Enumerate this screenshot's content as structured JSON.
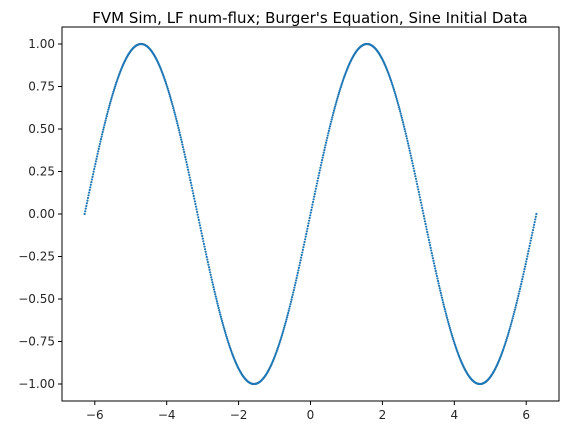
{
  "chart_data": {
    "type": "scatter",
    "title": "FVM Sim, LF num-flux; Burger's Equation, Sine Initial Data",
    "xlabel": "",
    "ylabel": "",
    "xlim": [
      -6.912,
      6.912
    ],
    "ylim": [
      -1.1,
      1.1
    ],
    "x_ticks": [
      -6,
      -4,
      -2,
      0,
      2,
      4,
      6
    ],
    "x_tick_labels": [
      "−6",
      "−4",
      "−2",
      "0",
      "2",
      "4",
      "6"
    ],
    "y_ticks": [
      1.0,
      0.75,
      0.5,
      0.25,
      0.0,
      -0.25,
      -0.5,
      -0.75,
      -1.0
    ],
    "y_tick_labels": [
      "1.00",
      "0.75",
      "0.50",
      "0.25",
      "0.00",
      "−0.25",
      "−0.50",
      "−0.75",
      "−1.00"
    ],
    "grid": false,
    "legend": "none",
    "series": [
      {
        "color": "#1f77b4",
        "marker": "dot",
        "function": "y = sin(x)",
        "x_range": [
          -6.283,
          6.283
        ],
        "num_points": 800
      }
    ]
  }
}
